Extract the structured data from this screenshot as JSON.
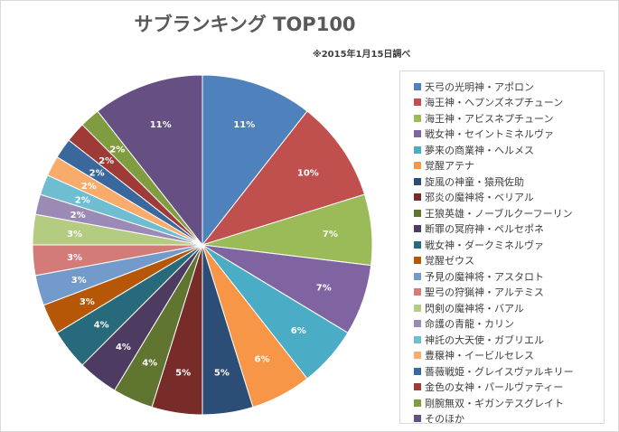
{
  "chart_data": {
    "type": "pie",
    "title": "サブランキング TOP100",
    "subtitle": "※2015年1月15日調べ",
    "legend_position": "right",
    "slices": [
      {
        "name": "天弓の光明神・アポロン",
        "value": 11,
        "label": "11%",
        "color": "#4f81bd"
      },
      {
        "name": "海王神・ヘプンズネプチューン",
        "value": 10,
        "label": "10%",
        "color": "#c0504d"
      },
      {
        "name": "海王神・アビスネプチューン",
        "value": 7,
        "label": "7%",
        "color": "#9bbb59"
      },
      {
        "name": "戦女神・セイントミネルヴァ",
        "value": 7,
        "label": "7%",
        "color": "#8064a2"
      },
      {
        "name": "夢来の商業神・ヘルメス",
        "value": 6,
        "label": "6%",
        "color": "#4bacc6"
      },
      {
        "name": "覚醒アテナ",
        "value": 6,
        "label": "6%",
        "color": "#f79646"
      },
      {
        "name": "旋風の神童・猿飛佐助",
        "value": 5,
        "label": "5%",
        "color": "#2c4d75"
      },
      {
        "name": "邪炎の魔神将・ベリアル",
        "value": 5,
        "label": "5%",
        "color": "#772c2a"
      },
      {
        "name": "王狼英雄・ノーブルクーフーリン",
        "value": 4,
        "label": "4%",
        "color": "#5f7530"
      },
      {
        "name": "断罪の冥府神・ペルセポネ",
        "value": 4,
        "label": "4%",
        "color": "#4d3b62"
      },
      {
        "name": "戦女神・ダークミネルヴァ",
        "value": 4,
        "label": "4%",
        "color": "#276a7c"
      },
      {
        "name": "覚醒ゼウス",
        "value": 3,
        "label": "3%",
        "color": "#b65708"
      },
      {
        "name": "予見の魔神将・アスタロト",
        "value": 3,
        "label": "3%",
        "color": "#729aca"
      },
      {
        "name": "聖弓の狩猟神・アルテミス",
        "value": 3,
        "label": "3%",
        "color": "#d37b79"
      },
      {
        "name": "閃剣の魔神将・バアル",
        "value": 3,
        "label": "3%",
        "color": "#b4cc82"
      },
      {
        "name": "命護の青龍・カリン",
        "value": 2,
        "label": "2%",
        "color": "#9c8ab6"
      },
      {
        "name": "神託の大天使・ガブリエル",
        "value": 2,
        "label": "2%",
        "color": "#6fbdd1"
      },
      {
        "name": "豊穣神・イービルセレス",
        "value": 2,
        "label": "2%",
        "color": "#f9ab6b"
      },
      {
        "name": "薔薇戦姫・グレイスヴァルキリー",
        "value": 2,
        "label": "2%",
        "color": "#3a679c"
      },
      {
        "name": "金色の女神・パールヴァティー",
        "value": 2,
        "label": "2%",
        "color": "#9e3b37"
      },
      {
        "name": "剛腕無双・ギガンテスグレイト",
        "value": 2,
        "label": "2%",
        "color": "#7f9d40"
      },
      {
        "name": "そのほか",
        "value": 11,
        "label": "11%",
        "color": "#664f83"
      }
    ]
  }
}
